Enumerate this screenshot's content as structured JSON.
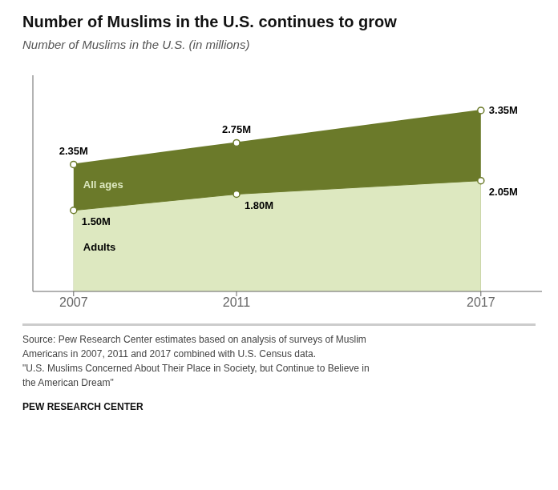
{
  "chart_data": {
    "type": "area",
    "title": "Number of Muslims in the U.S. continues to grow",
    "subtitle": "Number of Muslims in the U.S. (in millions)",
    "x": [
      2007,
      2011,
      2017
    ],
    "series": [
      {
        "name": "All ages",
        "color": "#6b7a2a",
        "values": [
          2.35,
          2.75,
          3.35
        ],
        "value_labels": [
          "2.35M",
          "2.75M",
          "3.35M"
        ]
      },
      {
        "name": "Adults",
        "color": "#dde8c0",
        "values": [
          1.5,
          1.8,
          2.05
        ],
        "value_labels": [
          "1.50M",
          "1.80M",
          "2.05M"
        ]
      }
    ],
    "xlim": [
      2006.0,
      2018.5
    ],
    "xticks": [
      2007,
      2011,
      2017
    ],
    "ylim": [
      0,
      4.0
    ],
    "tick_labels": "x",
    "data_labels": true,
    "annotations": [
      "Source: Pew Research Center estimates based on analysis of surveys of Muslim\nAmericans in 2007, 2011 and 2017 combined with U.S. Census data.\n\"U.S. Muslims Concerned About Their Place in Society, but Continue to Believe in\nthe American Dream\"",
      "PEW RESEARCH CENTER"
    ]
  }
}
